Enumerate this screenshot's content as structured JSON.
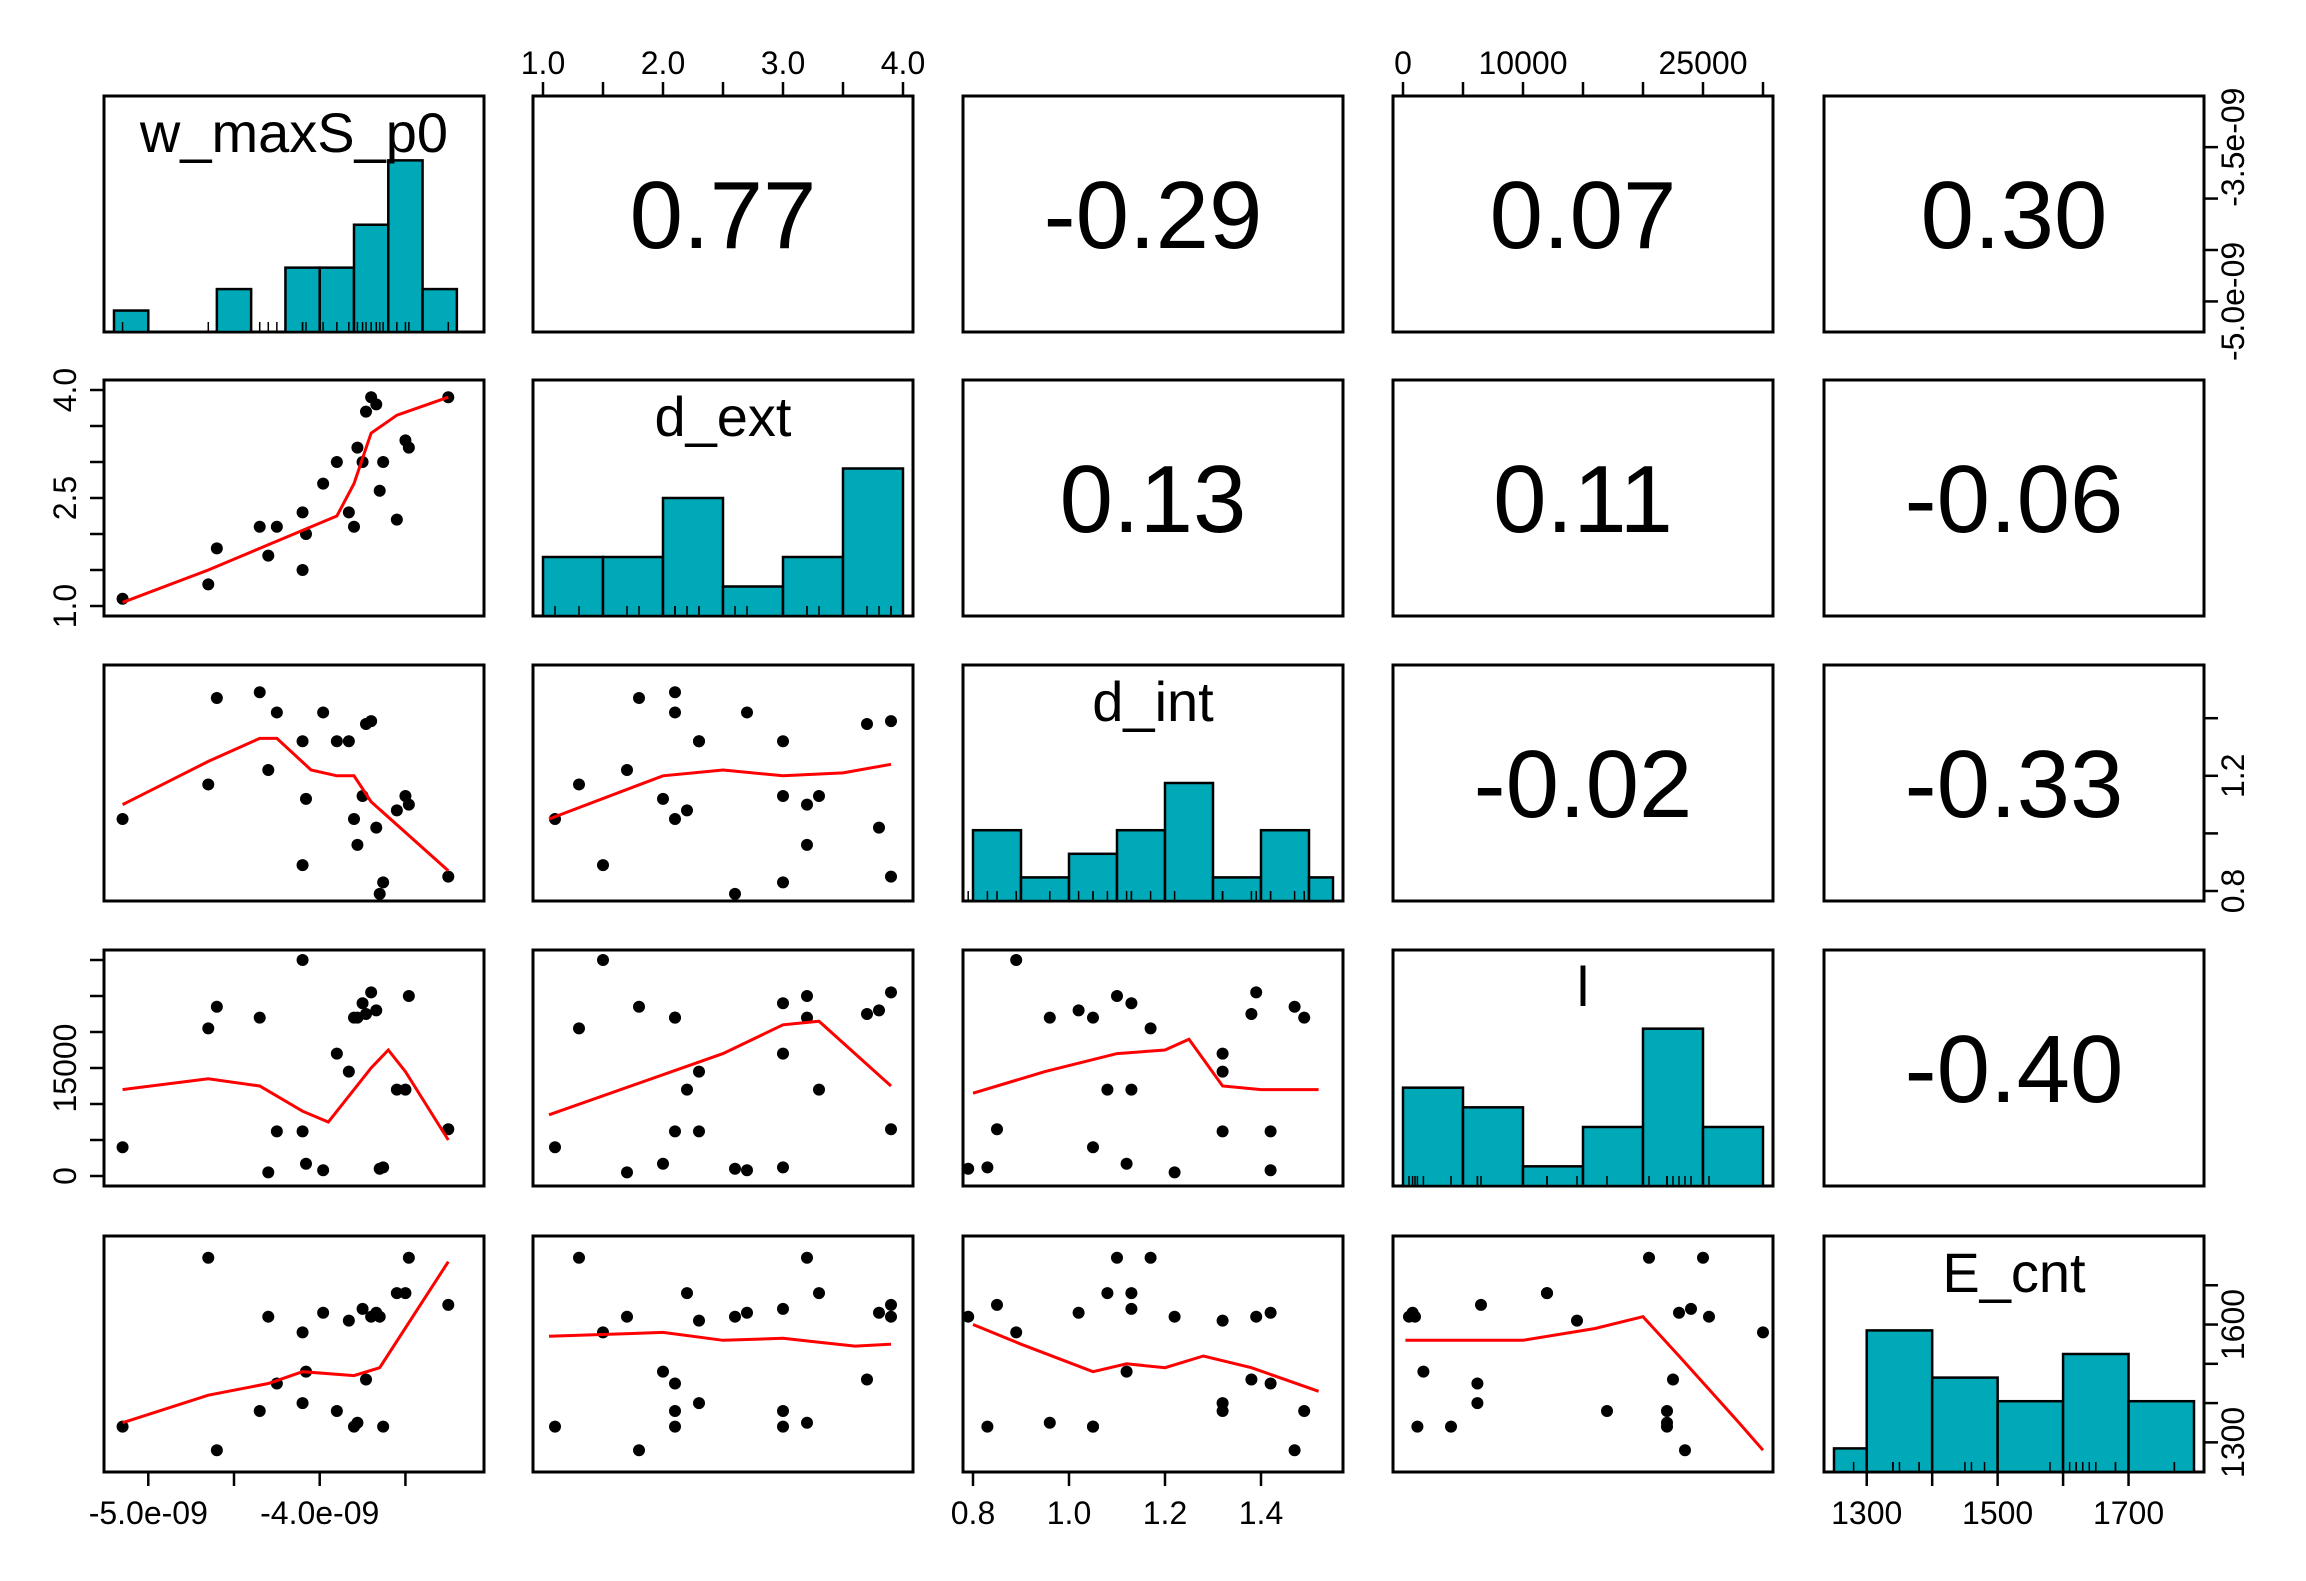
{
  "chart_data": {
    "type": "scatter-matrix",
    "variables": [
      "w_maxS_p0",
      "d_ext",
      "d_int",
      "l",
      "E_cnt"
    ],
    "diagonal_labels": [
      "w_maxS_p0",
      "d_ext",
      "d_int",
      "l",
      "E_cnt"
    ],
    "correlations": [
      {
        "row": 0,
        "col": 1,
        "label": "0.77"
      },
      {
        "row": 0,
        "col": 2,
        "label": "-0.29"
      },
      {
        "row": 0,
        "col": 3,
        "label": "0.07"
      },
      {
        "row": 0,
        "col": 4,
        "label": "0.30"
      },
      {
        "row": 1,
        "col": 2,
        "label": "0.13"
      },
      {
        "row": 1,
        "col": 3,
        "label": "0.11"
      },
      {
        "row": 1,
        "col": 4,
        "label": "-0.06"
      },
      {
        "row": 2,
        "col": 3,
        "label": "-0.02"
      },
      {
        "row": 2,
        "col": 4,
        "label": "-0.33"
      },
      {
        "row": 3,
        "col": 4,
        "label": "-0.40"
      }
    ],
    "axes": {
      "w_maxS_p0": {
        "range": [
          -5.2e-09,
          -3.1e-09
        ],
        "ticks": [
          -5e-09,
          -4.5e-09,
          -4e-09,
          -3.5e-09
        ],
        "labels": [
          "-5.0e-09",
          "",
          "-4.0e-09",
          ""
        ],
        "right_labels": [
          "-5.0e-09",
          "",
          "",
          "-3.5e-09"
        ]
      },
      "d_ext": {
        "range": [
          1.0,
          4.0
        ],
        "ticks": [
          1.0,
          1.5,
          2.0,
          2.5,
          3.0,
          3.5,
          4.0
        ],
        "labels": [
          "1.0",
          "",
          "2.0",
          "",
          "3.0",
          "",
          "4.0"
        ],
        "left_labels": [
          "1.0",
          "",
          "",
          "2.5",
          "",
          "",
          "4.0"
        ]
      },
      "d_int": {
        "range": [
          0.8,
          1.55
        ],
        "ticks": [
          0.8,
          1.0,
          1.2,
          1.4
        ],
        "labels": [
          "0.8",
          "1.0",
          "1.2",
          "1.4"
        ],
        "right_labels": [
          "0.8",
          "",
          "1.2",
          ""
        ]
      },
      "l": {
        "range": [
          0,
          30000
        ],
        "ticks": [
          0,
          5000,
          10000,
          15000,
          20000,
          25000,
          30000
        ],
        "labels": [
          "0",
          "",
          "10000",
          "",
          "",
          "25000",
          ""
        ],
        "left_labels": [
          "0",
          "",
          "",
          "15000",
          "",
          "",
          ""
        ]
      },
      "E_cnt": {
        "range": [
          1250,
          1800
        ],
        "ticks": [
          1300,
          1400,
          1500,
          1600,
          1700
        ],
        "labels": [
          "1300",
          "",
          "1500",
          "",
          "1700"
        ],
        "right_labels": [
          "1300",
          "",
          "",
          "1600",
          ""
        ]
      }
    },
    "observations": [
      {
        "w_maxS_p0": -5.15e-09,
        "d_ext": 1.1,
        "d_int": 1.05,
        "l": 4000,
        "E_cnt": 1340
      },
      {
        "w_maxS_p0": -4.65e-09,
        "d_ext": 1.3,
        "d_int": 1.17,
        "l": 20500,
        "E_cnt": 1770
      },
      {
        "w_maxS_p0": -4.6e-09,
        "d_ext": 1.8,
        "d_int": 1.47,
        "l": 23500,
        "E_cnt": 1280
      },
      {
        "w_maxS_p0": -4.35e-09,
        "d_ext": 2.1,
        "d_int": 1.49,
        "l": 22000,
        "E_cnt": 1380
      },
      {
        "w_maxS_p0": -4.3e-09,
        "d_ext": 1.7,
        "d_int": 1.22,
        "l": 500,
        "E_cnt": 1620
      },
      {
        "w_maxS_p0": -4.25e-09,
        "d_ext": 2.1,
        "d_int": 1.42,
        "l": 6200,
        "E_cnt": 1450
      },
      {
        "w_maxS_p0": -4.1e-09,
        "d_ext": 2.3,
        "d_int": 1.32,
        "l": 6200,
        "E_cnt": 1400
      },
      {
        "w_maxS_p0": -4.1e-09,
        "d_ext": 1.5,
        "d_int": 0.89,
        "l": 30000,
        "E_cnt": 1580
      },
      {
        "w_maxS_p0": -4.08e-09,
        "d_ext": 2.0,
        "d_int": 1.12,
        "l": 1700,
        "E_cnt": 1480
      },
      {
        "w_maxS_p0": -3.98e-09,
        "d_ext": 2.7,
        "d_int": 1.42,
        "l": 800,
        "E_cnt": 1630
      },
      {
        "w_maxS_p0": -3.9e-09,
        "d_ext": 3.0,
        "d_int": 1.32,
        "l": 17000,
        "E_cnt": 1380
      },
      {
        "w_maxS_p0": -3.83e-09,
        "d_ext": 2.3,
        "d_int": 1.32,
        "l": 14500,
        "E_cnt": 1610
      },
      {
        "w_maxS_p0": -3.8e-09,
        "d_ext": 2.1,
        "d_int": 1.05,
        "l": 22000,
        "E_cnt": 1340
      },
      {
        "w_maxS_p0": -3.78e-09,
        "d_ext": 3.2,
        "d_int": 0.96,
        "l": 22000,
        "E_cnt": 1350
      },
      {
        "w_maxS_p0": -3.75e-09,
        "d_ext": 3.0,
        "d_int": 1.13,
        "l": 24000,
        "E_cnt": 1640
      },
      {
        "w_maxS_p0": -3.73e-09,
        "d_ext": 3.7,
        "d_int": 1.38,
        "l": 22500,
        "E_cnt": 1460
      },
      {
        "w_maxS_p0": -3.7e-09,
        "d_ext": 3.9,
        "d_int": 1.39,
        "l": 25500,
        "E_cnt": 1620
      },
      {
        "w_maxS_p0": -3.67e-09,
        "d_ext": 3.8,
        "d_int": 1.02,
        "l": 23000,
        "E_cnt": 1630
      },
      {
        "w_maxS_p0": -3.65e-09,
        "d_ext": 2.6,
        "d_int": 0.79,
        "l": 1000,
        "E_cnt": 1620
      },
      {
        "w_maxS_p0": -3.63e-09,
        "d_ext": 3.0,
        "d_int": 0.83,
        "l": 1200,
        "E_cnt": 1340
      },
      {
        "w_maxS_p0": -3.55e-09,
        "d_ext": 2.2,
        "d_int": 1.08,
        "l": 12000,
        "E_cnt": 1680
      },
      {
        "w_maxS_p0": -3.5e-09,
        "d_ext": 3.3,
        "d_int": 1.13,
        "l": 12000,
        "E_cnt": 1680
      },
      {
        "w_maxS_p0": -3.48e-09,
        "d_ext": 3.2,
        "d_int": 1.1,
        "l": 25000,
        "E_cnt": 1770
      },
      {
        "w_maxS_p0": -3.25e-09,
        "d_ext": 3.9,
        "d_int": 0.85,
        "l": 6500,
        "E_cnt": 1650
      }
    ],
    "smoothers": {
      "0_0": null,
      "1_0": [
        [
          -5.15e-09,
          1.05
        ],
        [
          -4.65e-09,
          1.5
        ],
        [
          -4.3e-09,
          1.85
        ],
        [
          -3.9e-09,
          2.25
        ],
        [
          -3.8e-09,
          2.7
        ],
        [
          -3.7e-09,
          3.4
        ],
        [
          -3.55e-09,
          3.65
        ],
        [
          -3.25e-09,
          3.9
        ]
      ],
      "2_0": [
        [
          -5.15e-09,
          1.1
        ],
        [
          -4.65e-09,
          1.25
        ],
        [
          -4.35e-09,
          1.33
        ],
        [
          -4.25e-09,
          1.33
        ],
        [
          -4.05e-09,
          1.22
        ],
        [
          -3.9e-09,
          1.2
        ],
        [
          -3.8e-09,
          1.2
        ],
        [
          -3.7e-09,
          1.11
        ],
        [
          -3.25e-09,
          0.87
        ]
      ],
      "3_0": [
        [
          -5.15e-09,
          12000
        ],
        [
          -4.65e-09,
          13500
        ],
        [
          -4.35e-09,
          12500
        ],
        [
          -4.1e-09,
          9000
        ],
        [
          -3.95e-09,
          7500
        ],
        [
          -3.7e-09,
          15000
        ],
        [
          -3.6e-09,
          17500
        ],
        [
          -3.5e-09,
          14500
        ],
        [
          -3.25e-09,
          5000
        ]
      ],
      "4_0": [
        [
          -5.15e-09,
          1350
        ],
        [
          -4.65e-09,
          1420
        ],
        [
          -4.3e-09,
          1450
        ],
        [
          -4.1e-09,
          1480
        ],
        [
          -3.8e-09,
          1470
        ],
        [
          -3.65e-09,
          1490
        ],
        [
          -3.25e-09,
          1760
        ]
      ],
      "2_1": [
        [
          1.05,
          1.05
        ],
        [
          2.0,
          1.2
        ],
        [
          2.5,
          1.22
        ],
        [
          3.0,
          1.2
        ],
        [
          3.5,
          1.21
        ],
        [
          3.9,
          1.24
        ]
      ],
      "3_1": [
        [
          1.05,
          8500
        ],
        [
          2.5,
          17000
        ],
        [
          3.0,
          21000
        ],
        [
          3.3,
          21500
        ],
        [
          3.9,
          12500
        ]
      ],
      "4_1": [
        [
          1.05,
          1570
        ],
        [
          2.0,
          1580
        ],
        [
          2.5,
          1560
        ],
        [
          3.0,
          1565
        ],
        [
          3.3,
          1555
        ],
        [
          3.6,
          1545
        ],
        [
          3.9,
          1550
        ]
      ],
      "3_2": [
        [
          0.8,
          11500
        ],
        [
          0.95,
          14500
        ],
        [
          1.1,
          17000
        ],
        [
          1.2,
          17500
        ],
        [
          1.25,
          19000
        ],
        [
          1.32,
          12500
        ],
        [
          1.4,
          12000
        ],
        [
          1.52,
          12000
        ]
      ],
      "4_2": [
        [
          0.8,
          1600
        ],
        [
          0.9,
          1550
        ],
        [
          1.05,
          1480
        ],
        [
          1.12,
          1500
        ],
        [
          1.2,
          1490
        ],
        [
          1.28,
          1520
        ],
        [
          1.38,
          1490
        ],
        [
          1.52,
          1430
        ]
      ],
      "4_3": [
        [
          200,
          1560
        ],
        [
          10000,
          1560
        ],
        [
          16000,
          1590
        ],
        [
          20000,
          1620
        ],
        [
          23000,
          1520
        ],
        [
          28000,
          1350
        ],
        [
          30000,
          1280
        ]
      ]
    },
    "histograms": {
      "w_maxS_p0": {
        "breaks": [
          -5.2e-09,
          -5e-09,
          -4.8e-09,
          -4.6e-09,
          -4.4e-09,
          -4.2e-09,
          -4e-09,
          -3.8e-09,
          -3.6e-09,
          -3.4e-09,
          -3.2e-09,
          -3.1e-09
        ],
        "counts": [
          1,
          0,
          0,
          2,
          0,
          3,
          3,
          5,
          8,
          2,
          0
        ],
        "ylim": [
          0,
          11
        ]
      },
      "d_ext": {
        "breaks": [
          1.0,
          1.5,
          2.0,
          2.5,
          3.0,
          3.5,
          4.0
        ],
        "counts": [
          2,
          2,
          4,
          1,
          2,
          5
        ],
        "ylim": [
          0,
          8
        ]
      },
      "d_int": {
        "breaks": [
          0.8,
          0.9,
          1.0,
          1.1,
          1.2,
          1.3,
          1.4,
          1.5,
          1.55
        ],
        "counts": [
          3,
          1,
          2,
          3,
          5,
          1,
          3,
          1
        ],
        "ylim": [
          0,
          10
        ]
      },
      "l": {
        "breaks": [
          0,
          5000,
          10000,
          15000,
          20000,
          25000,
          30000
        ],
        "counts": [
          5,
          4,
          1,
          3,
          8,
          3
        ],
        "ylim": [
          0,
          12
        ]
      },
      "E_cnt": {
        "breaks": [
          1250,
          1300,
          1400,
          1500,
          1600,
          1700,
          1800
        ],
        "counts": [
          1,
          6,
          4,
          3,
          5,
          3
        ],
        "ylim": [
          0,
          10
        ]
      }
    }
  }
}
